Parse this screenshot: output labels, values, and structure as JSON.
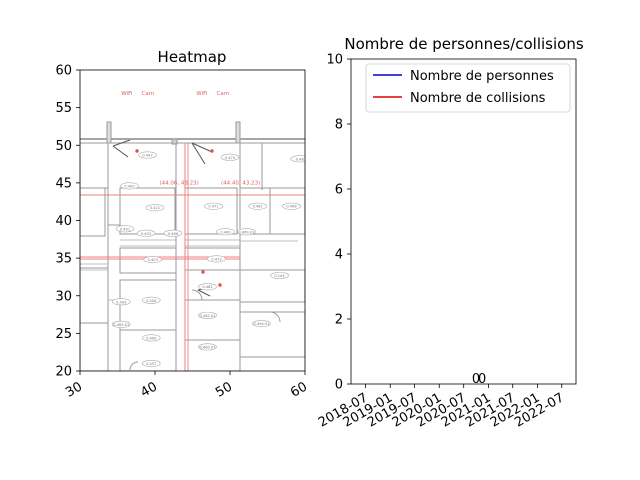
{
  "chart_data": [
    {
      "type": "heatmap",
      "title": "Heatmap",
      "xlim": [
        30,
        60
      ],
      "ylim": [
        20,
        60
      ],
      "x_ticks": [
        30,
        40,
        50,
        60
      ],
      "y_ticks": [
        20,
        25,
        30,
        35,
        40,
        45,
        50,
        55,
        60
      ],
      "background": "floor plan",
      "annotations": [
        {
          "text": "(44.06, 43.23)",
          "x": 40.6,
          "y": 44.8
        },
        {
          "text": "(44.40, 43.23)",
          "x": 48.8,
          "y": 44.8
        },
        {
          "text": "WiFi",
          "x": 35.5,
          "y": 56.7
        },
        {
          "text": "Cam",
          "x": 38.2,
          "y": 56.7
        },
        {
          "text": "WiFi",
          "x": 45.5,
          "y": 56.7
        },
        {
          "text": "Cam",
          "x": 48.2,
          "y": 56.7
        }
      ],
      "rooms": [
        {
          "text": "0.497",
          "x": 39.0,
          "y": 48.5
        },
        {
          "text": "0.470",
          "x": 50.0,
          "y": 48.2
        },
        {
          "text": "0.48",
          "x": 59.3,
          "y": 48.0
        },
        {
          "text": "0.490",
          "x": 36.6,
          "y": 44.4
        },
        {
          "text": "0.421",
          "x": 40.0,
          "y": 41.5
        },
        {
          "text": "0.471",
          "x": 47.8,
          "y": 41.7
        },
        {
          "text": "0.481",
          "x": 53.7,
          "y": 41.7
        },
        {
          "text": "0.498",
          "x": 58.2,
          "y": 41.7
        },
        {
          "text": "0.491",
          "x": 36.0,
          "y": 38.7
        },
        {
          "text": "0.402",
          "x": 38.8,
          "y": 38.1
        },
        {
          "text": "0.486",
          "x": 42.4,
          "y": 38.1
        },
        {
          "text": "0.460",
          "x": 49.4,
          "y": 38.3
        },
        {
          "text": "0.460.01",
          "x": 52.2,
          "y": 38.3
        },
        {
          "text": "0.403",
          "x": 39.7,
          "y": 34.6
        },
        {
          "text": "0.473",
          "x": 48.2,
          "y": 34.7
        },
        {
          "text": "0.104",
          "x": 56.6,
          "y": 32.5
        },
        {
          "text": "0.482",
          "x": 47.0,
          "y": 31.0
        },
        {
          "text": "0.493",
          "x": 35.5,
          "y": 29.0
        },
        {
          "text": "0.456",
          "x": 39.5,
          "y": 29.2
        },
        {
          "text": "0.462.01",
          "x": 47.0,
          "y": 27.2
        },
        {
          "text": "0.494.01",
          "x": 54.2,
          "y": 26.1
        },
        {
          "text": "0.483.01",
          "x": 35.5,
          "y": 26.0
        },
        {
          "text": "0.400",
          "x": 39.5,
          "y": 24.2
        },
        {
          "text": "0.460.07",
          "x": 47.0,
          "y": 23.0
        },
        {
          "text": "0.457",
          "x": 39.5,
          "y": 20.8
        }
      ]
    },
    {
      "type": "line",
      "title": "Nombre de personnes/collisions",
      "ylim": [
        0,
        10
      ],
      "y_ticks": [
        0,
        2,
        4,
        6,
        8,
        10
      ],
      "x_ticks": [
        "2018-07",
        "2019-01",
        "2019-07",
        "2020-01",
        "2020-07",
        "2021-01",
        "2021-07",
        "2022-01",
        "2022-07"
      ],
      "legend_position": "upper right",
      "series": [
        {
          "name": "Nombre de personnes",
          "color": "#0000cc",
          "x": [],
          "y": []
        },
        {
          "name": "Nombre de collisions",
          "color": "#dd0000",
          "x": [],
          "y": []
        }
      ],
      "annotations": [
        {
          "text": "0",
          "x": "2020-10-01",
          "y": 0
        },
        {
          "text": "0",
          "x": "2020-11-15",
          "y": 0
        }
      ]
    }
  ]
}
